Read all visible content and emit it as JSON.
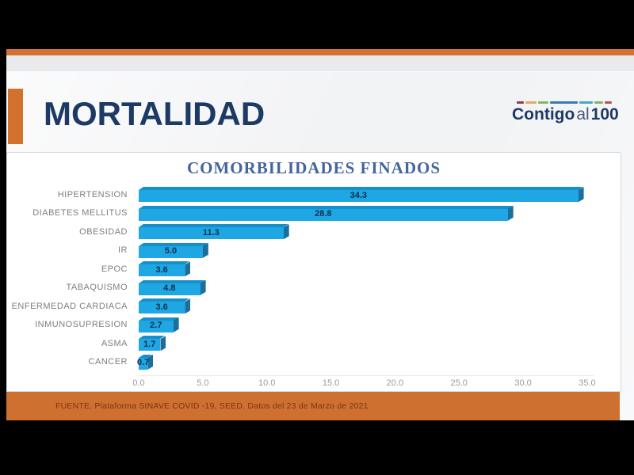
{
  "slide": {
    "title": "MORTALIDAD",
    "logo": {
      "contigo": "Contigo",
      "al": "al",
      "hundred": "100",
      "segment_colors": [
        "#8e4049",
        "#ddae66",
        "#84b56a",
        "#3e77b0",
        "#45a8c8",
        "#84b56a",
        "#c0504d"
      ],
      "segment_widths": [
        9,
        15,
        13,
        36,
        17,
        12,
        9
      ]
    },
    "footer_text": "FUENTE. Plataforma SINAVE COVID -19, SEED. Datos del 23 de Marzo de 2021",
    "colors": {
      "accent_orange": "#d2722e",
      "title_navy": "#1c3a63",
      "footer_orange": "#ce7030",
      "footer_text": "#7e3414"
    }
  },
  "chart_data": {
    "type": "bar",
    "orientation": "horizontal",
    "title": "COMORBILIDADES FINADOS",
    "categories": [
      "HIPERTENSION",
      "DIABETES MELLITUS",
      "OBESIDAD",
      "IR",
      "EPOC",
      "TABAQUISMO",
      "ENFERMEDAD CARDIACA",
      "INMUNOSUPRESION",
      "ASMA",
      "CANCER"
    ],
    "values": [
      34.3,
      28.8,
      11.3,
      5.0,
      3.6,
      4.8,
      3.6,
      2.7,
      1.7,
      0.7
    ],
    "value_labels": [
      "34.3",
      "28.8",
      "11.3",
      "5.0",
      "3.6",
      "4.8",
      "3.6",
      "2.7",
      "1.7",
      "0.7"
    ],
    "xlabel": "",
    "ylabel": "",
    "xlim": [
      0,
      35
    ],
    "x_ticks": [
      0,
      5,
      10,
      15,
      20,
      25,
      30,
      35
    ],
    "x_tick_labels": [
      "0.0",
      "5.0",
      "10.0",
      "15.0",
      "20.0",
      "25.0",
      "30.0",
      "35.0"
    ],
    "grid": false,
    "legend": false,
    "bar_color": "#1ea7e2",
    "bar_top_color": "#1690cb",
    "bar_side_color": "#1a6f9e",
    "category_label_color": "#7e7e7e",
    "value_label_color": "#0d2f52",
    "tick_label_color": "#9b9b9b"
  }
}
